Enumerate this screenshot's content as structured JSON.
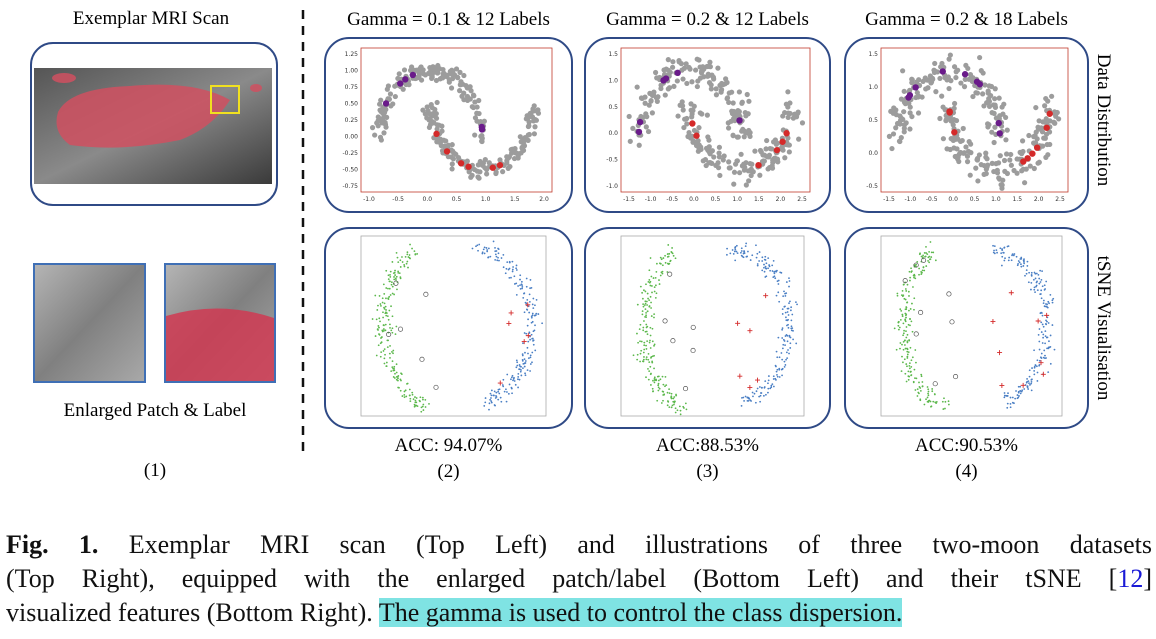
{
  "left_panel": {
    "title": "Exemplar MRI Scan",
    "caption": "Enlarged Patch & Label",
    "label": "(1)"
  },
  "panels": [
    {
      "title": "Gamma = 0.1 & 12 Labels",
      "accuracy": "ACC: 94.07%",
      "label": "(2)",
      "xticks": [
        "-1.0",
        "-0.5",
        "0.0",
        "0.5",
        "1.0",
        "1.5",
        "2.0"
      ],
      "yticks": [
        "1.25",
        "1.00",
        "0.75",
        "0.50",
        "0.25",
        "0.00",
        "-0.25",
        "-0.50",
        "-0.75"
      ]
    },
    {
      "title": "Gamma = 0.2 & 12 Labels",
      "accuracy": "ACC:88.53%",
      "label": "(3)",
      "xticks": [
        "-1.5",
        "-1.0",
        "-0.5",
        "0.0",
        "0.5",
        "1.0",
        "1.5",
        "2.0",
        "2.5"
      ],
      "yticks": [
        "1.5",
        "1.0",
        "0.5",
        "0.0",
        "-0.5",
        "-1.0"
      ]
    },
    {
      "title": "Gamma = 0.2 & 18 Labels",
      "accuracy": "ACC:90.53%",
      "label": "(4)",
      "xticks": [
        "-1.5",
        "-1.0",
        "-0.5",
        "0.0",
        "0.5",
        "1.0",
        "1.5",
        "2.0",
        "2.5"
      ],
      "yticks": [
        "1.5",
        "1.0",
        "0.5",
        "0.0",
        "-0.5"
      ]
    }
  ],
  "row_labels": [
    "Data Distribution",
    "tSNE Visualisation"
  ],
  "caption": {
    "label": "Fig. 1.",
    "line1": " Exemplar MRI scan (Top Left) and illustrations of three two-moon datasets",
    "line2": "(Top Right), equipped with the enlarged patch/label (Bottom Left) and their tSNE [",
    "ref": "12",
    "line2_end": "]",
    "line3": "visualized features (Bottom Right). ",
    "highlight": "The gamma is used to control the class dispersion."
  }
}
